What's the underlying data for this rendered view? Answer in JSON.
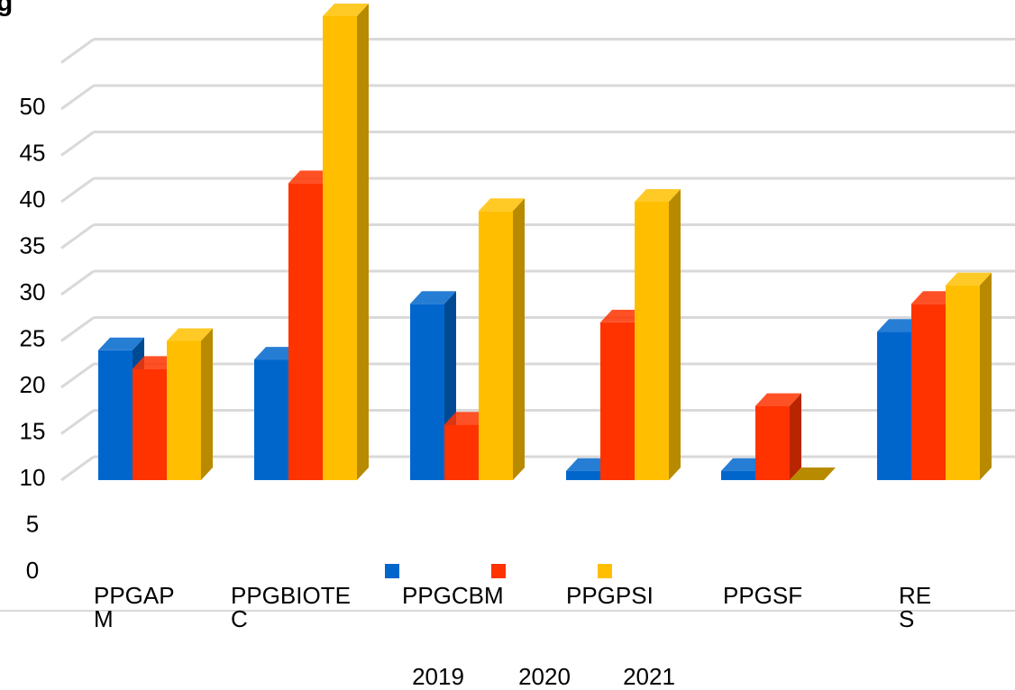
{
  "chart_data": {
    "type": "bar",
    "title_fragment": "g",
    "categories": [
      "PPGAPM",
      "PPGBIOTEC",
      "PPGCBM",
      "PPGPSI",
      "PPGSF",
      "RES"
    ],
    "category_labels": [
      [
        "PPGAP",
        "M"
      ],
      [
        "PPGBIOTE",
        "C"
      ],
      [
        "PPGCBM"
      ],
      [
        "PPGPSI"
      ],
      [
        "PPGSF"
      ],
      [
        "RE",
        "S"
      ]
    ],
    "series": [
      {
        "name": "2019",
        "color": "#0066cc",
        "side_color": "#004a94",
        "values": [
          24,
          23,
          29,
          11,
          11,
          26
        ]
      },
      {
        "name": "2020",
        "color": "#ff3300",
        "side_color": "#b82500",
        "values": [
          22,
          42,
          16,
          27,
          18,
          29
        ]
      },
      {
        "name": "2021",
        "color": "#ffbf00",
        "side_color": "#b88a00",
        "values": [
          25,
          60,
          39,
          40,
          10,
          31
        ]
      }
    ],
    "y_ticks": [
      0,
      5,
      10,
      15,
      20,
      25,
      30,
      35,
      40,
      45,
      50
    ],
    "ylim": [
      0,
      60
    ],
    "grid": true,
    "legend_position": "bottom",
    "three_d": true
  }
}
